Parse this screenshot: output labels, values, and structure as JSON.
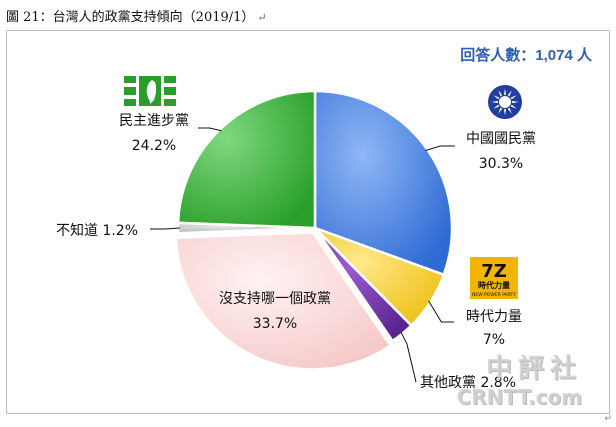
{
  "caption": {
    "text": "圖 21：台灣人的政黨支持傾向（2019/1）",
    "return_mark": "↵"
  },
  "respondents": "回答人數：1,074 人",
  "chart_data": {
    "type": "pie",
    "title": "圖 21：台灣人的政黨支持傾向（2019/1）",
    "start_angle_deg": 90,
    "direction": "clockwise",
    "slices": [
      {
        "name": "中國國民黨",
        "label": "30.3%",
        "value": 30.3,
        "color": "#3f7fe0"
      },
      {
        "name": "時代力量",
        "label": "7%",
        "value": 7.0,
        "color": "#f5cc2a"
      },
      {
        "name": "其他政黨",
        "label": "2.8%",
        "value": 2.8,
        "color": "#6b2fa0"
      },
      {
        "name": "沒支持哪一個政黨",
        "label": "33.7%",
        "value": 33.7,
        "color": "#f9d3d3"
      },
      {
        "name": "不知道",
        "label": "1.2%",
        "value": 1.2,
        "color": "#c8c8c8"
      },
      {
        "name": "民主進步黨",
        "label": "24.2%",
        "value": 24.2,
        "color": "#3cb53c"
      }
    ]
  },
  "logos": {
    "kmt": {
      "icon": "kmt-sun-emblem",
      "color": "#1f3f9f"
    },
    "dpp": {
      "icon": "dpp-taiwan-emblem",
      "color": "#2a9d2a"
    },
    "npp": {
      "icon": "npp-emblem",
      "color": "#f2b600",
      "text": "時代力量",
      "subtext": "NEW POWER PARTY"
    }
  },
  "watermark": {
    "line1": "中評社",
    "line2": "CRNTT.com"
  },
  "corner_mark": "↵"
}
